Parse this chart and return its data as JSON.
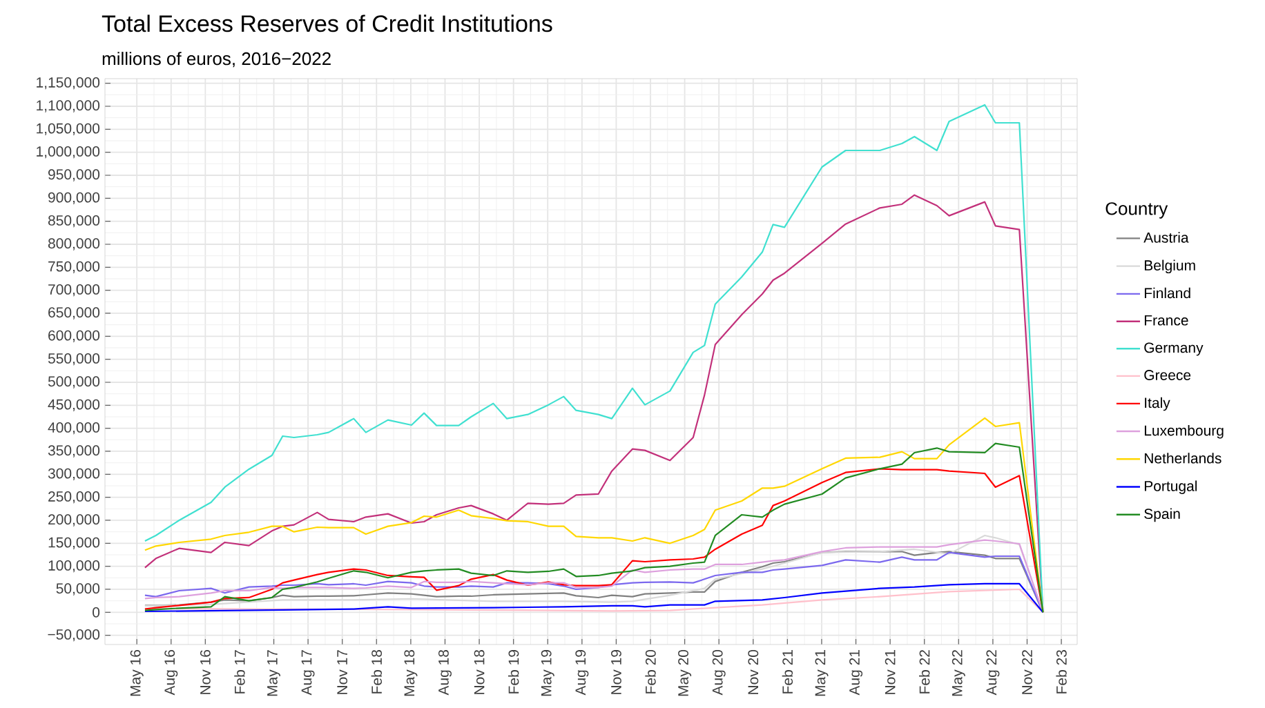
{
  "chart_data": {
    "type": "line",
    "title": "Total Excess Reserves of Credit Institutions",
    "subtitle": "millions of euros, 2016−2022",
    "legend_title": "Country",
    "legend": "right",
    "grid": true,
    "x": [
      "2016-05-23",
      "2016-06-21",
      "2016-08-23",
      "2016-11-16",
      "2016-12-23",
      "2017-02-24",
      "2017-04-26",
      "2017-05-25",
      "2017-06-24",
      "2017-08-26",
      "2017-09-25",
      "2017-12-01",
      "2018-01-03",
      "2018-03-01",
      "2018-05-03",
      "2018-06-06",
      "2018-07-09",
      "2018-09-07",
      "2018-10-10",
      "2018-12-08",
      "2019-01-14",
      "2019-03-09",
      "2019-05-03",
      "2019-06-13",
      "2019-07-16",
      "2019-09-14",
      "2019-10-20",
      "2019-12-14",
      "2020-01-17",
      "2020-03-23",
      "2020-05-24",
      "2020-06-23",
      "2020-07-22",
      "2020-10-01",
      "2020-11-25",
      "2020-12-24",
      "2021-01-24",
      "2021-05-02",
      "2021-07-04",
      "2021-10-04",
      "2021-12-02",
      "2022-01-05",
      "2022-03-04",
      "2022-04-06",
      "2022-07-10",
      "2022-08-08",
      "2022-10-11",
      "2022-12-13"
    ],
    "xlim": [
      "2016-02-07",
      "2023-03-13"
    ],
    "xticks": [
      {
        "value": "2016-05-01",
        "label": "May 16"
      },
      {
        "value": "2016-08-01",
        "label": "Aug 16"
      },
      {
        "value": "2016-11-01",
        "label": "Nov 16"
      },
      {
        "value": "2017-02-01",
        "label": "Feb 17"
      },
      {
        "value": "2017-05-01",
        "label": "May 17"
      },
      {
        "value": "2017-08-01",
        "label": "Aug 17"
      },
      {
        "value": "2017-11-01",
        "label": "Nov 17"
      },
      {
        "value": "2018-02-01",
        "label": "Feb 18"
      },
      {
        "value": "2018-05-01",
        "label": "May 18"
      },
      {
        "value": "2018-08-01",
        "label": "Aug 18"
      },
      {
        "value": "2018-11-01",
        "label": "Nov 18"
      },
      {
        "value": "2019-02-01",
        "label": "Feb 19"
      },
      {
        "value": "2019-05-01",
        "label": "May 19"
      },
      {
        "value": "2019-08-01",
        "label": "Aug 19"
      },
      {
        "value": "2019-11-01",
        "label": "Nov 19"
      },
      {
        "value": "2020-02-01",
        "label": "Feb 20"
      },
      {
        "value": "2020-05-01",
        "label": "May 20"
      },
      {
        "value": "2020-08-01",
        "label": "Aug 20"
      },
      {
        "value": "2020-11-01",
        "label": "Nov 20"
      },
      {
        "value": "2021-02-01",
        "label": "Feb 21"
      },
      {
        "value": "2021-05-01",
        "label": "May 21"
      },
      {
        "value": "2021-08-01",
        "label": "Aug 21"
      },
      {
        "value": "2021-11-01",
        "label": "Nov 21"
      },
      {
        "value": "2022-02-01",
        "label": "Feb 22"
      },
      {
        "value": "2022-05-01",
        "label": "May 22"
      },
      {
        "value": "2022-08-01",
        "label": "Aug 22"
      },
      {
        "value": "2022-11-01",
        "label": "Nov 22"
      },
      {
        "value": "2023-02-01",
        "label": "Feb 23"
      }
    ],
    "ylim": [
      -70000,
      1160000
    ],
    "yticks": [
      {
        "value": -50000,
        "label": "−50,000"
      },
      0,
      {
        "value": 50000,
        "label": "50,000"
      },
      {
        "value": 100000,
        "label": "100,000"
      },
      {
        "value": 150000,
        "label": "150,000"
      },
      {
        "value": 200000,
        "label": "200,000"
      },
      {
        "value": 250000,
        "label": "250,000"
      },
      {
        "value": 300000,
        "label": "300,000"
      },
      {
        "value": 350000,
        "label": "350,000"
      },
      {
        "value": 400000,
        "label": "400,000"
      },
      {
        "value": 450000,
        "label": "450,000"
      },
      {
        "value": 500000,
        "label": "500,000"
      },
      {
        "value": 550000,
        "label": "550,000"
      },
      {
        "value": 600000,
        "label": "600,000"
      },
      {
        "value": 650000,
        "label": "650,000"
      },
      {
        "value": 700000,
        "label": "700,000"
      },
      {
        "value": 750000,
        "label": "750,000"
      },
      {
        "value": 800000,
        "label": "800,000"
      },
      {
        "value": 850000,
        "label": "850,000"
      },
      {
        "value": 900000,
        "label": "900,000"
      },
      {
        "value": 950000,
        "label": "950,000"
      },
      {
        "value": 1000000,
        "label": "1,000,000"
      },
      {
        "value": 1050000,
        "label": "1,050,000"
      },
      {
        "value": 1100000,
        "label": "1,100,000"
      },
      {
        "value": 1150000,
        "label": "1,150,000"
      }
    ],
    "series": [
      {
        "name": "Austria",
        "color": "#808080",
        "values": [
          15000,
          15000,
          16000,
          22000,
          27000,
          25000,
          32000,
          37000,
          34000,
          35000,
          35000,
          36000,
          38000,
          42000,
          40000,
          37000,
          34000,
          35000,
          35000,
          38000,
          39000,
          40000,
          41000,
          42000,
          36000,
          32000,
          37000,
          34000,
          40000,
          42000,
          44000,
          44000,
          67000,
          87000,
          99000,
          107000,
          110000,
          130000,
          132000,
          132000,
          132000,
          124000,
          130000,
          132000,
          124000,
          117000,
          117000,
          0
        ]
      },
      {
        "name": "Belgium",
        "color": "#d9d9d9",
        "x": [
          "2016-05-23",
          "2016-11-16",
          "2017-05-25",
          "2017-12-01",
          "2018-05-03",
          "2018-12-08",
          "2019-06-13",
          "2019-10-20",
          "2019-12-14",
          "2020-03-23",
          "2020-06-23",
          "2020-07-22",
          "2020-11-25",
          "2021-01-24",
          "2021-05-02",
          "2021-10-04",
          "2022-01-05",
          "2022-04-06",
          "2022-07-10",
          "2022-08-08",
          "2022-10-11",
          "2022-12-13"
        ],
        "values": [
          14000,
          17000,
          27000,
          27000,
          29000,
          24000,
          24000,
          22000,
          24000,
          37000,
          52000,
          72000,
          94000,
          107000,
          130000,
          132000,
          137000,
          127000,
          167000,
          162000,
          147000,
          0
        ]
      },
      {
        "name": "Finland",
        "color": "#7b68ee",
        "values": [
          37000,
          34000,
          47000,
          52000,
          42000,
          55000,
          57000,
          59000,
          59000,
          62000,
          60000,
          62000,
          59000,
          67000,
          64000,
          57000,
          55000,
          55000,
          57000,
          55000,
          64000,
          64000,
          62000,
          57000,
          50000,
          54000,
          60000,
          64000,
          65000,
          66000,
          64000,
          72000,
          80000,
          87000,
          87000,
          92000,
          94000,
          102000,
          114000,
          109000,
          120000,
          114000,
          114000,
          130000,
          120000,
          122000,
          122000,
          0
        ]
      },
      {
        "name": "France",
        "color": "#c2307a",
        "values": [
          97000,
          117000,
          139000,
          130000,
          152000,
          145000,
          177000,
          187000,
          190000,
          217000,
          202000,
          197000,
          207000,
          214000,
          194000,
          197000,
          212000,
          227000,
          232000,
          214000,
          200000,
          237000,
          235000,
          237000,
          255000,
          257000,
          307000,
          355000,
          352000,
          330000,
          380000,
          472000,
          582000,
          647000,
          692000,
          722000,
          737000,
          802000,
          844000,
          879000,
          887000,
          907000,
          884000,
          862000,
          892000,
          840000,
          832000,
          0
        ]
      },
      {
        "name": "Germany",
        "color": "#40e0d0",
        "values": [
          155000,
          167000,
          200000,
          239000,
          272000,
          311000,
          341000,
          383000,
          380000,
          386000,
          391000,
          421000,
          391000,
          418000,
          407000,
          433000,
          406000,
          406000,
          425000,
          454000,
          421000,
          430000,
          451000,
          469000,
          439000,
          430000,
          421000,
          487000,
          451000,
          481000,
          565000,
          580000,
          670000,
          729000,
          783000,
          843000,
          837000,
          968000,
          1004000,
          1004000,
          1019000,
          1034000,
          1004000,
          1067000,
          1103000,
          1064000,
          1064000,
          0
        ]
      },
      {
        "name": "Greece",
        "color": "#ffc0cb",
        "x": [
          "2016-05-23",
          "2018-05-03",
          "2019-10-20",
          "2020-03-23",
          "2020-07-22",
          "2020-11-25",
          "2021-05-02",
          "2021-10-04",
          "2022-04-06",
          "2022-10-11",
          "2022-12-13"
        ],
        "values": [
          8000,
          6000,
          3000,
          4000,
          10000,
          16000,
          27000,
          34000,
          45000,
          50000,
          0
        ]
      },
      {
        "name": "Italy",
        "color": "#ff0000",
        "values": [
          7000,
          10000,
          15000,
          22000,
          30000,
          32000,
          50000,
          64000,
          70000,
          82000,
          87000,
          94000,
          92000,
          80000,
          77000,
          76000,
          48000,
          58000,
          72000,
          82000,
          70000,
          59000,
          66000,
          60000,
          58000,
          58000,
          60000,
          112000,
          110000,
          114000,
          116000,
          120000,
          137000,
          170000,
          189000,
          232000,
          242000,
          282000,
          304000,
          312000,
          310000,
          310000,
          310000,
          307000,
          302000,
          272000,
          297000,
          0
        ]
      },
      {
        "name": "Luxembourg",
        "color": "#dda0dd",
        "values": [
          30000,
          32000,
          34000,
          42000,
          47000,
          47000,
          54000,
          52000,
          54000,
          54000,
          54000,
          52000,
          53000,
          57000,
          54000,
          67000,
          65000,
          65000,
          67000,
          64000,
          62000,
          60000,
          64000,
          64000,
          54000,
          54000,
          57000,
          92000,
          87000,
          92000,
          94000,
          94000,
          104000,
          104000,
          109000,
          112000,
          114000,
          132000,
          140000,
          142000,
          142000,
          142000,
          142000,
          147000,
          157000,
          155000,
          149000,
          0
        ]
      },
      {
        "name": "Netherlands",
        "color": "#ffd700",
        "values": [
          135000,
          144000,
          152000,
          159000,
          167000,
          174000,
          187000,
          187000,
          175000,
          185000,
          184000,
          184000,
          170000,
          187000,
          195000,
          209000,
          207000,
          222000,
          210000,
          204000,
          199000,
          197000,
          187000,
          187000,
          165000,
          162000,
          162000,
          155000,
          162000,
          150000,
          167000,
          180000,
          222000,
          242000,
          270000,
          270000,
          274000,
          312000,
          335000,
          337000,
          349000,
          334000,
          334000,
          364000,
          422000,
          404000,
          412000,
          0
        ]
      },
      {
        "name": "Portugal",
        "color": "#0000ff",
        "x": [
          "2016-05-23",
          "2017-05-25",
          "2017-12-01",
          "2018-03-01",
          "2018-05-03",
          "2018-12-08",
          "2019-06-13",
          "2019-10-20",
          "2019-12-14",
          "2020-01-17",
          "2020-03-23",
          "2020-06-23",
          "2020-07-22",
          "2020-11-25",
          "2021-01-24",
          "2021-05-02",
          "2021-10-04",
          "2022-01-05",
          "2022-04-06",
          "2022-07-10",
          "2022-10-11",
          "2022-12-13"
        ],
        "values": [
          2000,
          5000,
          7000,
          12000,
          9000,
          10000,
          12000,
          14000,
          14000,
          12000,
          16000,
          16000,
          24000,
          27000,
          32000,
          42000,
          52000,
          55000,
          60000,
          62000,
          62000,
          0
        ]
      },
      {
        "name": "Spain",
        "color": "#228b22",
        "values": [
          4000,
          6000,
          9000,
          12000,
          34000,
          25000,
          32000,
          50000,
          54000,
          66000,
          74000,
          90000,
          87000,
          75000,
          87000,
          90000,
          92000,
          94000,
          85000,
          80000,
          90000,
          87000,
          89000,
          94000,
          78000,
          80000,
          85000,
          90000,
          97000,
          100000,
          107000,
          109000,
          167000,
          212000,
          207000,
          222000,
          235000,
          257000,
          292000,
          312000,
          322000,
          347000,
          357000,
          349000,
          347000,
          367000,
          359000,
          0
        ]
      }
    ]
  }
}
